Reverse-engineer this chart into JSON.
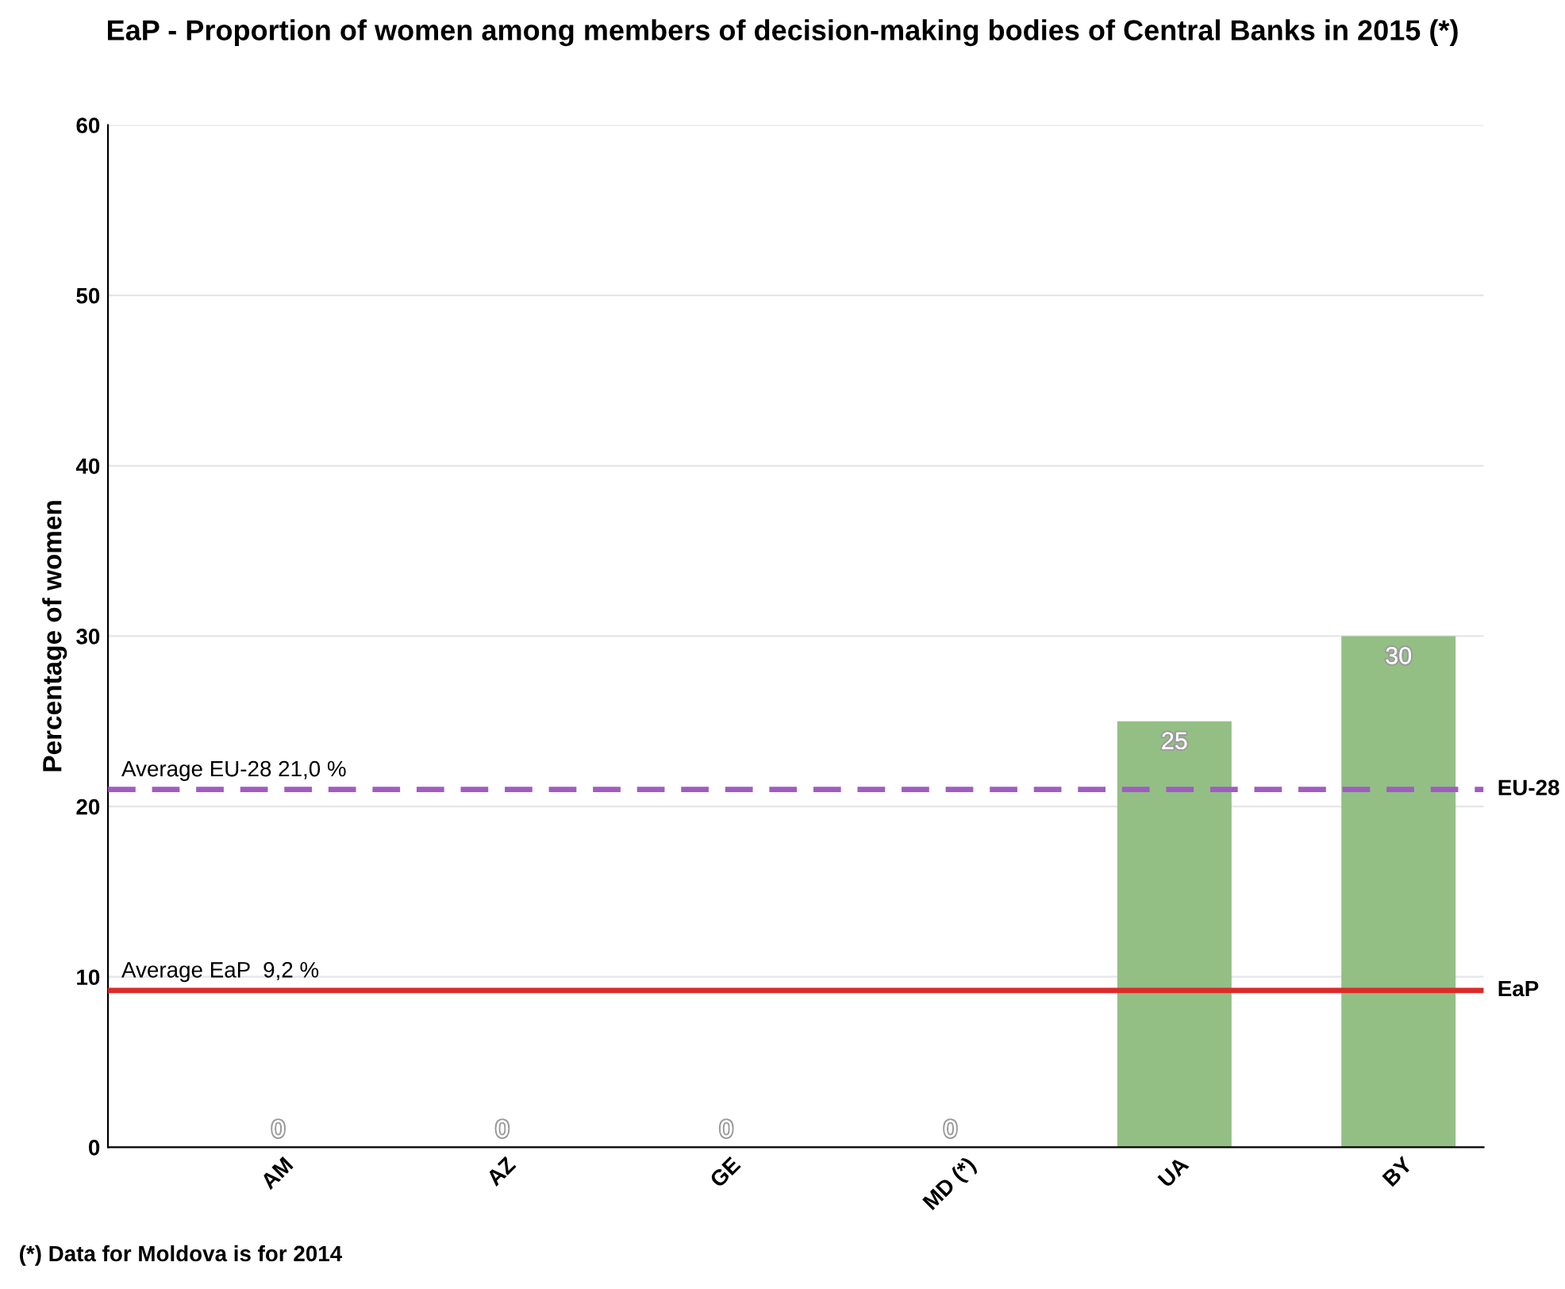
{
  "chart_data": {
    "type": "bar",
    "title": "EaP - Proportion of women among members of decision-making bodies of Central Banks in 2015 (*)",
    "ylabel": "Percentage of women",
    "categories": [
      "AM",
      "AZ",
      "GE",
      "MD (*)",
      "UA",
      "BY"
    ],
    "values": [
      0,
      0,
      0,
      0,
      25,
      30
    ],
    "color": "#93bf85",
    "ylim": [
      0,
      60
    ],
    "yticks": [
      0,
      10,
      20,
      30,
      40,
      50,
      60
    ],
    "grid": "y",
    "data_labels": true,
    "ref_lines": [
      {
        "axis": "y",
        "value": 21.0,
        "label": "Average EU-28 21,0 %",
        "color": "#a05cc0",
        "line_style": "dashed"
      },
      {
        "axis": "y",
        "value": 9.2,
        "label": "Average EaP  9,2 %",
        "color": "#de2a2a",
        "line_style": "solid"
      }
    ],
    "annotations": [
      "EU-28",
      "EaP",
      "(*) Data for Moldova is for 2014"
    ]
  }
}
